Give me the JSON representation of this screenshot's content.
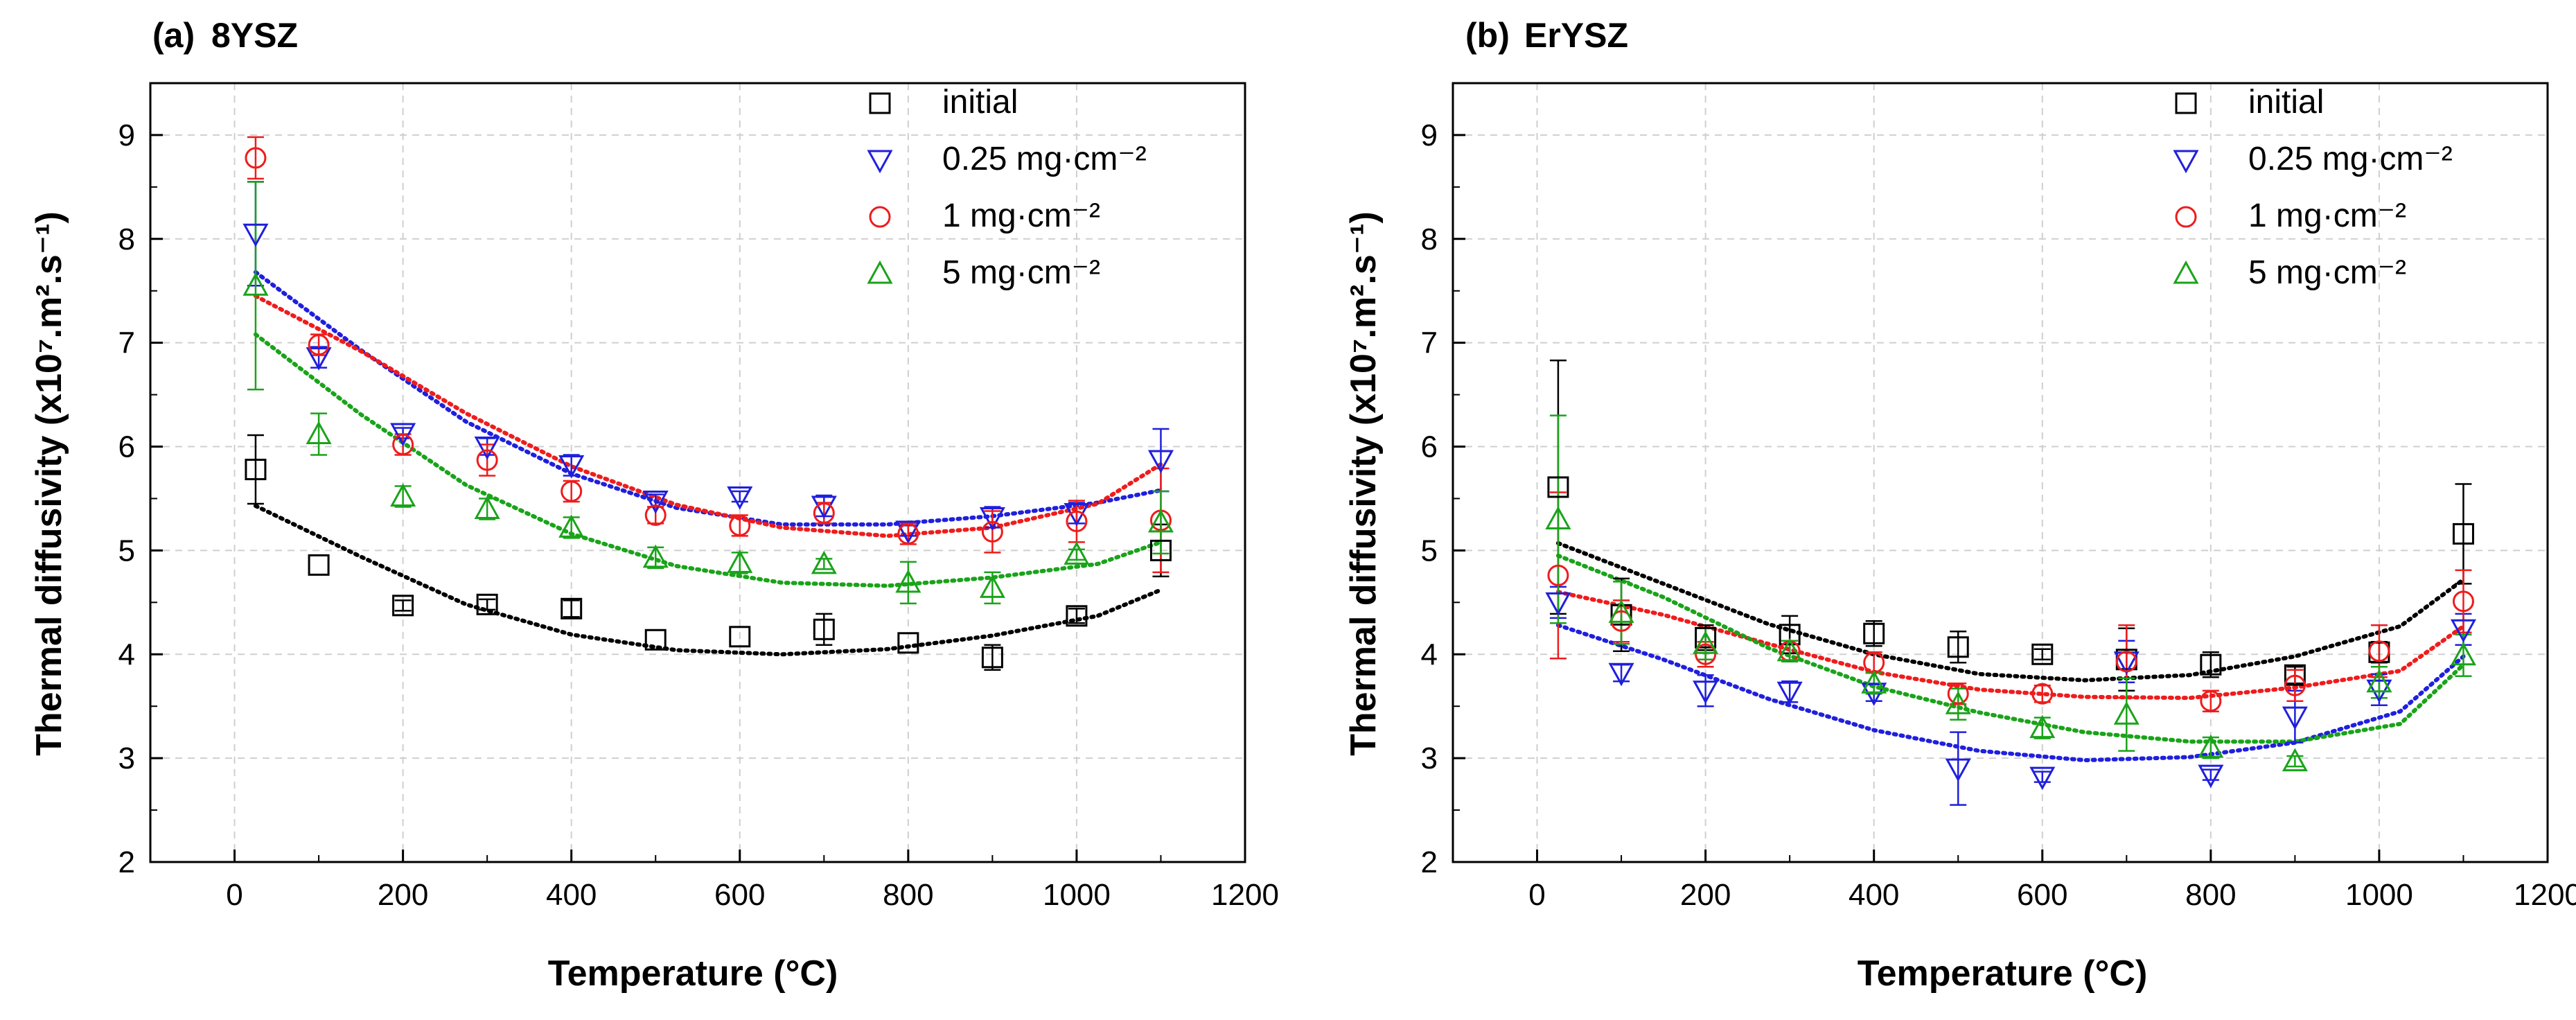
{
  "chart_data": [
    {
      "type": "scatter",
      "panel_label": "(a)",
      "title": "8YSZ",
      "xlabel": "Temperature (°C)",
      "ylabel": "Thermal diffusivity (x10⁷.m².s⁻¹)",
      "xlim": [
        -100,
        1200
      ],
      "ylim": [
        2,
        9.5
      ],
      "xticks": [
        "0",
        "200",
        "400",
        "600",
        "800",
        "1000",
        "1200"
      ],
      "yticks": [
        "2",
        "3",
        "4",
        "5",
        "6",
        "7",
        "8",
        "9"
      ],
      "grid": true,
      "legend_position": "top-right",
      "series": [
        {
          "name": "initial",
          "color": "#000000",
          "marker": "square",
          "x": [
            25,
            100,
            200,
            300,
            400,
            500,
            600,
            700,
            800,
            900,
            1000,
            1100
          ],
          "y": [
            5.78,
            4.86,
            4.47,
            4.48,
            4.44,
            4.14,
            4.17,
            4.24,
            4.11,
            3.97,
            4.37,
            5.0
          ],
          "err": [
            0.33,
            0.0,
            0.05,
            0.05,
            0.08,
            0.0,
            0.0,
            0.15,
            0.0,
            0.12,
            0.07,
            0.25
          ],
          "fit": [
            5.43,
            4.94,
            4.48,
            4.19,
            4.04,
            4.0,
            4.05,
            4.18,
            4.37,
            4.62
          ]
        },
        {
          "name": "0.25 mg·cm⁻²",
          "color": "#1f1fdd",
          "marker": "triangle-down",
          "x": [
            25,
            100,
            200,
            300,
            400,
            500,
            600,
            700,
            800,
            900,
            1000,
            1100
          ],
          "y": [
            8.05,
            6.86,
            6.13,
            6.0,
            5.82,
            5.48,
            5.52,
            5.43,
            5.19,
            5.32,
            5.36,
            5.87
          ],
          "err": [
            0.5,
            0.1,
            0.05,
            0.08,
            0.1,
            0.06,
            0.05,
            0.1,
            0.05,
            0.1,
            0.1,
            0.3
          ],
          "fit": [
            7.68,
            6.93,
            6.24,
            5.74,
            5.41,
            5.25,
            5.25,
            5.33,
            5.46,
            5.58
          ]
        },
        {
          "name": "1 mg·cm⁻²",
          "color": "#ee1c1c",
          "marker": "circle",
          "x": [
            25,
            100,
            200,
            300,
            400,
            500,
            600,
            700,
            800,
            900,
            1000,
            1100
          ],
          "y": [
            8.78,
            6.98,
            6.02,
            5.87,
            5.57,
            5.34,
            5.24,
            5.36,
            5.16,
            5.18,
            5.28,
            5.29
          ],
          "err": [
            0.2,
            0.1,
            0.1,
            0.15,
            0.1,
            0.08,
            0.1,
            0.1,
            0.1,
            0.2,
            0.2,
            0.5
          ],
          "fit": [
            7.45,
            6.92,
            6.32,
            5.81,
            5.44,
            5.22,
            5.14,
            5.22,
            5.45,
            5.83
          ]
        },
        {
          "name": "5 mg·cm⁻²",
          "color": "#1aa31a",
          "marker": "triangle-up",
          "x": [
            25,
            100,
            200,
            300,
            400,
            500,
            600,
            700,
            800,
            900,
            1000,
            1100
          ],
          "y": [
            7.55,
            6.12,
            5.52,
            5.4,
            5.22,
            4.93,
            4.88,
            4.87,
            4.69,
            4.64,
            4.96,
            5.27
          ],
          "err": [
            1.0,
            0.2,
            0.1,
            0.1,
            0.1,
            0.1,
            0.1,
            0.05,
            0.2,
            0.15,
            0.05,
            0.3
          ],
          "fit": [
            7.08,
            6.31,
            5.63,
            5.16,
            4.85,
            4.69,
            4.66,
            4.74,
            4.87,
            5.08
          ]
        }
      ]
    },
    {
      "type": "scatter",
      "panel_label": "(b)",
      "title": "ErYSZ",
      "xlabel": "Temperature (°C)",
      "ylabel": "Thermal diffusivity (x10⁷.m².s⁻¹)",
      "xlim": [
        -100,
        1200
      ],
      "ylim": [
        2,
        9.5
      ],
      "xticks": [
        "0",
        "200",
        "400",
        "600",
        "800",
        "1000",
        "1200"
      ],
      "yticks": [
        "2",
        "3",
        "4",
        "5",
        "6",
        "7",
        "8",
        "9"
      ],
      "grid": true,
      "legend_position": "top-right",
      "series": [
        {
          "name": "initial",
          "color": "#000000",
          "marker": "square",
          "x": [
            25,
            100,
            200,
            300,
            400,
            500,
            600,
            700,
            800,
            900,
            1000,
            1100
          ],
          "y": [
            5.61,
            4.38,
            4.16,
            4.19,
            4.2,
            4.07,
            4.0,
            3.95,
            3.9,
            3.8,
            4.02,
            5.16
          ],
          "err": [
            1.22,
            0.35,
            0.12,
            0.18,
            0.12,
            0.15,
            0.05,
            0.3,
            0.12,
            0.08,
            0.1,
            0.48
          ],
          "fit": [
            5.07,
            4.68,
            4.29,
            4.0,
            3.81,
            3.75,
            3.8,
            3.98,
            4.27,
            4.72
          ]
        },
        {
          "name": "0.25 mg·cm⁻²",
          "color": "#1f1fdd",
          "marker": "triangle-down",
          "x": [
            25,
            100,
            200,
            300,
            400,
            500,
            600,
            700,
            800,
            900,
            1000,
            1100
          ],
          "y": [
            4.5,
            3.82,
            3.65,
            3.64,
            3.63,
            2.9,
            2.82,
            3.93,
            2.84,
            3.4,
            3.66,
            4.24
          ],
          "err": [
            0.15,
            0.08,
            0.15,
            0.1,
            0.08,
            0.35,
            0.05,
            0.2,
            0.05,
            0.25,
            0.15,
            0.15
          ],
          "fit": [
            4.28,
            3.95,
            3.57,
            3.27,
            3.07,
            2.98,
            3.01,
            3.15,
            3.45,
            3.98
          ]
        },
        {
          "name": "1 mg·cm⁻²",
          "color": "#ee1c1c",
          "marker": "circle",
          "x": [
            25,
            100,
            200,
            300,
            400,
            500,
            600,
            700,
            800,
            900,
            1000,
            1100
          ],
          "y": [
            4.76,
            4.32,
            4.0,
            4.03,
            3.92,
            3.62,
            3.62,
            3.93,
            3.55,
            3.7,
            4.03,
            4.51
          ],
          "err": [
            0.8,
            0.2,
            0.12,
            0.1,
            0.1,
            0.1,
            0.08,
            0.35,
            0.1,
            0.15,
            0.25,
            0.3
          ],
          "fit": [
            4.6,
            4.38,
            4.1,
            3.83,
            3.66,
            3.59,
            3.58,
            3.68,
            3.84,
            4.27
          ]
        },
        {
          "name": "5 mg·cm⁻²",
          "color": "#1aa31a",
          "marker": "triangle-up",
          "x": [
            25,
            100,
            200,
            300,
            400,
            500,
            600,
            700,
            800,
            900,
            1000,
            1100
          ],
          "y": [
            5.3,
            4.4,
            4.1,
            4.03,
            3.72,
            3.52,
            3.29,
            3.42,
            3.1,
            2.97,
            3.73,
            3.99
          ],
          "err": [
            1.0,
            0.3,
            0.15,
            0.1,
            0.1,
            0.15,
            0.1,
            0.35,
            0.1,
            0.05,
            0.15,
            0.2
          ],
          "fit": [
            4.95,
            4.55,
            4.06,
            3.69,
            3.44,
            3.25,
            3.16,
            3.16,
            3.33,
            3.9
          ]
        }
      ]
    }
  ]
}
